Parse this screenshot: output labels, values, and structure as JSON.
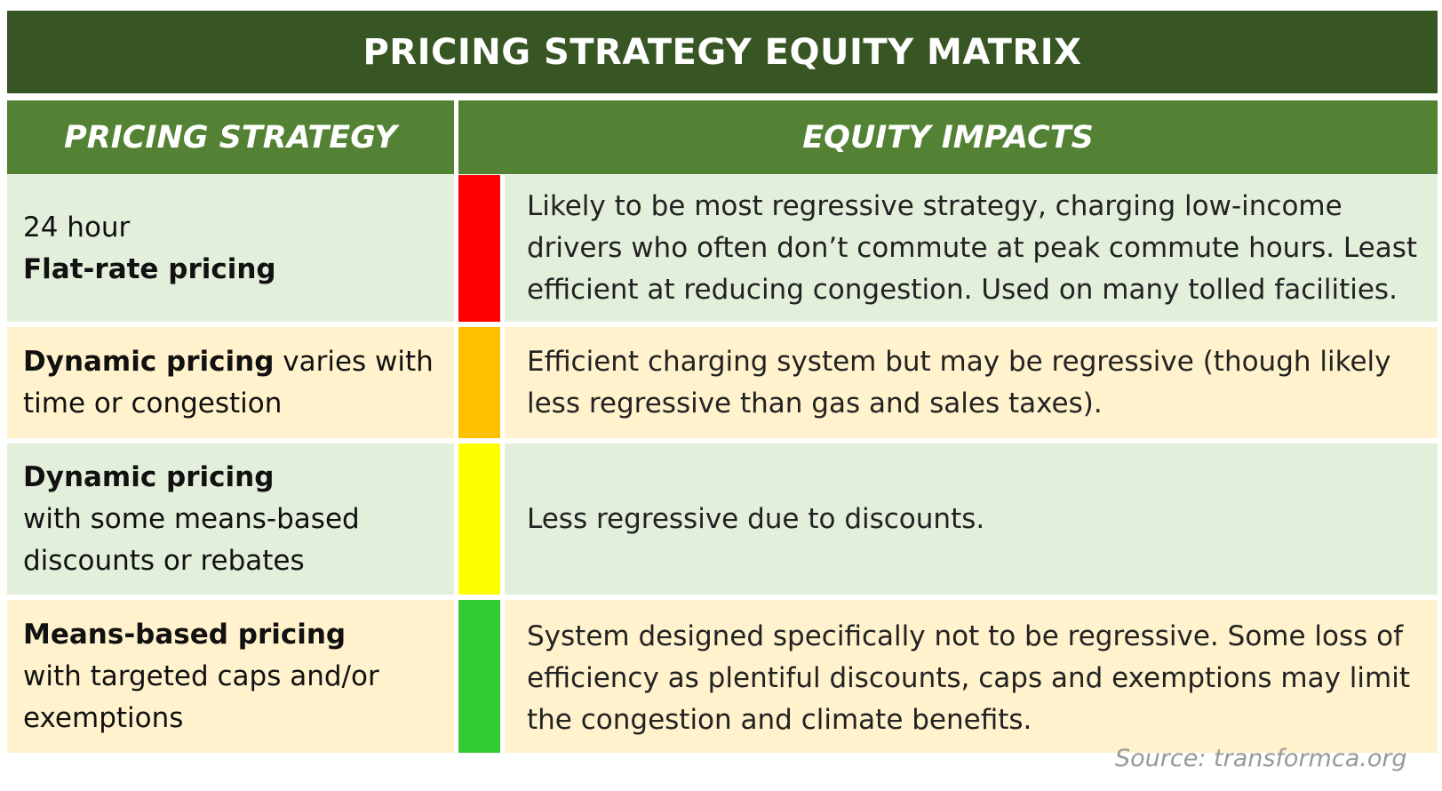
{
  "title": "PRICING STRATEGY EQUITY MATRIX",
  "headers": {
    "strategy": "PRICING STRATEGY",
    "impacts": "EQUITY IMPACTS"
  },
  "rows": [
    {
      "strategy_bold_first": false,
      "strategy_line1": "24 hour",
      "strategy_bold": "Flat-rate pricing",
      "strategy_rest": "",
      "rating_color": "#ff0000",
      "impact": "Likely to be most regressive strategy, charging low-income drivers who often don’t commute at peak commute hours. Least efficient at reducing congestion. Used on many tolled facilities."
    },
    {
      "strategy_bold": "Dynamic pricing",
      "strategy_rest": " varies with time or congestion",
      "rating_color": "#ffc000",
      "impact": "Efficient charging system but may be regressive (though likely less regressive than gas and sales taxes)."
    },
    {
      "strategy_bold": "Dynamic pricing",
      "strategy_rest": "with some means-based discounts or rebates",
      "rating_color": "#ffff00",
      "impact": "Less regressive due to discounts."
    },
    {
      "strategy_bold": "Means-based pricing",
      "strategy_rest": "with targeted caps and/or exemptions",
      "rating_color": "#33cc33",
      "impact": "System designed specifically not to be regressive. Some loss of efficiency as plentiful discounts, caps and exemptions may limit the congestion and climate benefits."
    }
  ],
  "source": "Source: transformca.org",
  "colors": {
    "title_bg": "#375623",
    "header_bg": "#548235",
    "row_green": "#e2efda",
    "row_cream": "#fff2cc"
  }
}
